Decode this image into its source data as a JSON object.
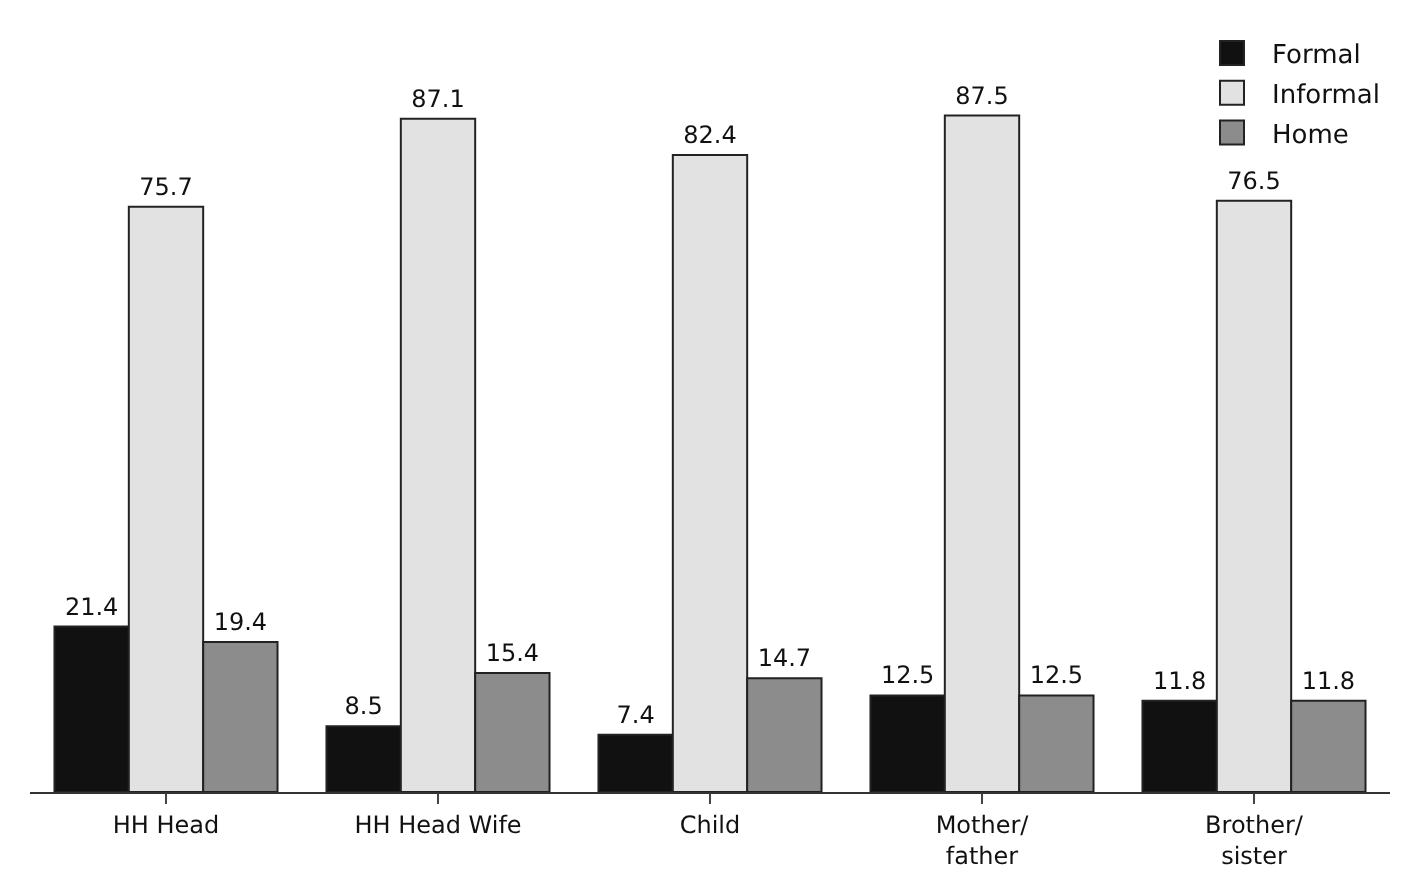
{
  "chart_data": {
    "type": "bar",
    "categories": [
      "HH Head",
      "HH Head Wife",
      "Child",
      "Mother/\nfather",
      "Brother/\nsister"
    ],
    "series": [
      {
        "name": "Formal",
        "color": "#111111",
        "values": [
          21.4,
          8.5,
          7.4,
          12.5,
          11.8
        ]
      },
      {
        "name": "Informal",
        "color": "#e2e2e2",
        "values": [
          75.7,
          87.1,
          82.4,
          87.5,
          76.5
        ]
      },
      {
        "name": "Home",
        "color": "#8c8c8c",
        "values": [
          19.4,
          15.4,
          14.7,
          12.5,
          11.8
        ]
      }
    ],
    "data_labels": true,
    "legend": "top right"
  }
}
